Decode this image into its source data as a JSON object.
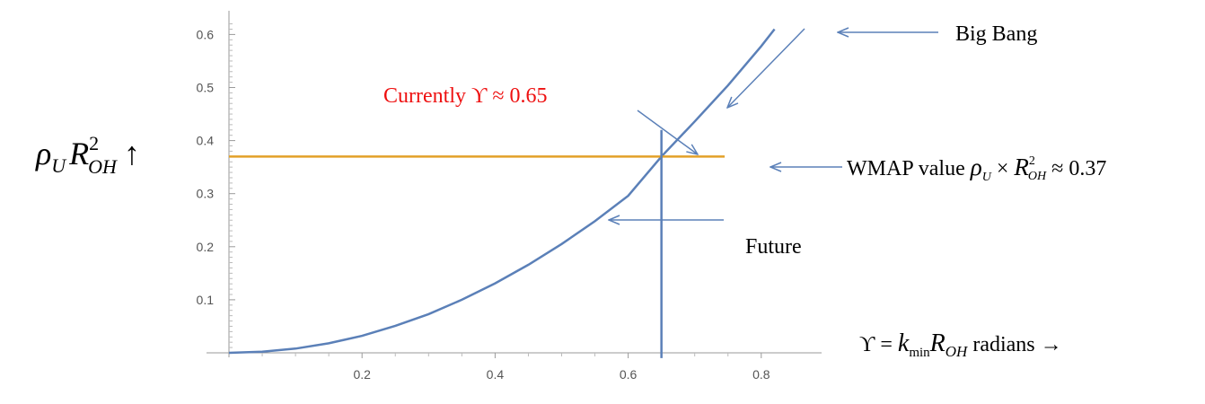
{
  "chart_data": {
    "type": "line",
    "x_ticks": [
      0.2,
      0.4,
      0.6,
      0.8
    ],
    "y_ticks": [
      0.1,
      0.2,
      0.3,
      0.4,
      0.5,
      0.6
    ],
    "xlim": [
      0,
      0.83
    ],
    "ylim": [
      0,
      0.63
    ],
    "series": [
      {
        "kind": "curve",
        "color": "#5b80b8",
        "x": [
          0,
          0.05,
          0.1,
          0.15,
          0.2,
          0.25,
          0.3,
          0.35,
          0.4,
          0.45,
          0.5,
          0.55,
          0.6,
          0.65,
          0.7,
          0.75,
          0.8,
          0.82
        ],
        "y": [
          0,
          0.002,
          0.008,
          0.018,
          0.032,
          0.051,
          0.073,
          0.1,
          0.131,
          0.166,
          0.205,
          0.248,
          0.296,
          0.37,
          0.436,
          0.504,
          0.578,
          0.61
        ]
      },
      {
        "kind": "horizontal",
        "color": "#e3a128",
        "y": 0.37,
        "x": [
          0,
          0.745
        ]
      },
      {
        "kind": "vertical",
        "color": "#5b80b8",
        "x": 0.65,
        "y": [
          -0.01,
          0.42
        ]
      }
    ],
    "ylabel": {
      "rho": "ρ",
      "rho_sub": "U",
      "r": "R",
      "r_sub": "OH",
      "r_sup": "2",
      "arrow": "↑"
    },
    "xlabel": {
      "upsilon": "ϒ",
      "eq": " = ",
      "k": "k",
      "k_sub": "min",
      "r": "R",
      "r_sub": "OH",
      "tail": "  radians →"
    },
    "annotations": {
      "big_bang": "Big Bang",
      "currently": "Currently  ϒ ≈ 0.65",
      "wmap_prefix": "WMAP value  ",
      "wmap_rho": "ρ",
      "wmap_rho_sub": "U",
      "wmap_times": " × ",
      "wmap_r": "R",
      "wmap_r_sub": "OH",
      "wmap_r_sup": "2",
      "wmap_tail": " ≈ 0.37",
      "future": "Future"
    },
    "colors": {
      "curve": "#5b80b8",
      "wmap_line": "#e3a128",
      "annotation_red": "#ee1111",
      "arrow": "#5b80b8"
    }
  }
}
